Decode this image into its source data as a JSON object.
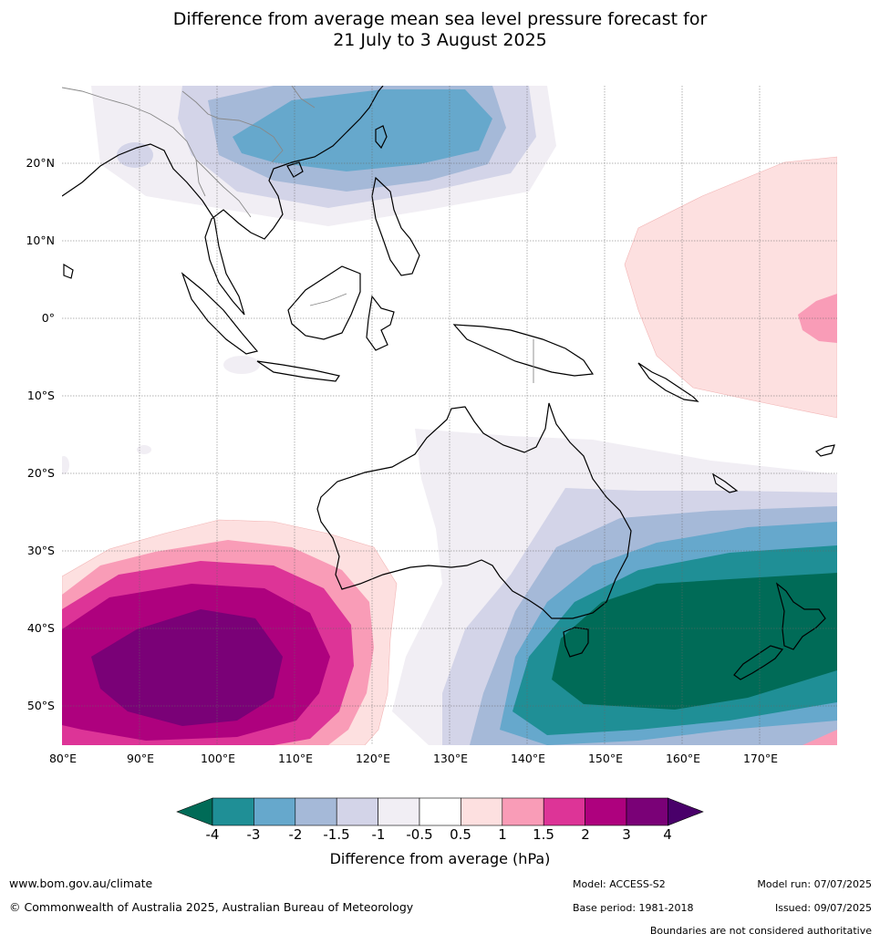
{
  "title": {
    "line1": "Difference from average mean sea level pressure forecast for",
    "line2": "21 July to 3 August 2025"
  },
  "map": {
    "lat_labels": [
      "20°N",
      "10°N",
      "0°",
      "10°S",
      "20°S",
      "30°S",
      "40°S",
      "50°S"
    ],
    "lon_labels": [
      "80°E",
      "90°E",
      "100°E",
      "110°E",
      "120°E",
      "130°E",
      "140°E",
      "150°E",
      "160°E",
      "170°E"
    ]
  },
  "colorbar": {
    "ticks": [
      "-4",
      "-3",
      "-2",
      "-1.5",
      "-1",
      "-0.5",
      "0.5",
      "1",
      "1.5",
      "2",
      "3",
      "4"
    ],
    "label": "Difference from average (hPa)",
    "colors": [
      "#006b57",
      "#1f8f96",
      "#66a8cc",
      "#a5b9d8",
      "#d3d4e8",
      "#f1eef4",
      "#ffffff",
      "#fde0e0",
      "#f99cb7",
      "#dd3497",
      "#ae017e",
      "#7a0177",
      "#49006a"
    ]
  },
  "footer": {
    "url": "www.bom.gov.au/climate",
    "copyright": "© Commonwealth of Australia 2025, Australian Bureau of Meteorology",
    "model": "Model: ACCESS-S2",
    "base_period": "Base period: 1981-2018",
    "model_run": "Model run: 07/07/2025",
    "issued": "Issued: 09/07/2025",
    "disclaimer": "Boundaries are not considered authoritative"
  }
}
